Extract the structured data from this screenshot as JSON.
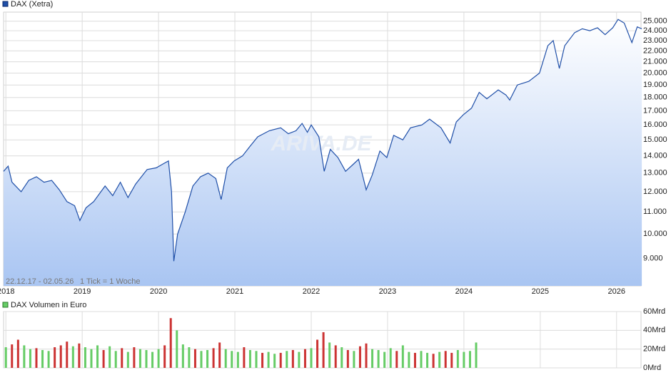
{
  "watermark": "ARIVA.DE",
  "chart_data": [
    {
      "type": "line",
      "annotations": [
        "22.12.17 - 02.05.26",
        "1 Tick = 1 Woche"
      ],
      "series": [
        {
          "name": "DAX (Xetra)",
          "color": "#1f4fa8",
          "x": [
            2017.97,
            2018.03,
            2018.08,
            2018.2,
            2018.3,
            2018.4,
            2018.5,
            2018.6,
            2018.7,
            2018.8,
            2018.9,
            2018.97,
            2019.05,
            2019.15,
            2019.3,
            2019.4,
            2019.5,
            2019.6,
            2019.7,
            2019.85,
            2019.97,
            2020.05,
            2020.13,
            2020.17,
            2020.2,
            2020.25,
            2020.35,
            2020.45,
            2020.55,
            2020.65,
            2020.75,
            2020.82,
            2020.9,
            2020.99,
            2021.1,
            2021.2,
            2021.3,
            2021.45,
            2021.6,
            2021.7,
            2021.8,
            2021.88,
            2021.95,
            2022.0,
            2022.1,
            2022.17,
            2022.25,
            2022.35,
            2022.45,
            2022.55,
            2022.62,
            2022.72,
            2022.8,
            2022.9,
            2022.99,
            2023.08,
            2023.2,
            2023.3,
            2023.45,
            2023.55,
            2023.7,
            2023.82,
            2023.9,
            2023.99,
            2024.1,
            2024.2,
            2024.3,
            2024.45,
            2024.55,
            2024.6,
            2024.7,
            2024.85,
            2024.99,
            2025.1,
            2025.17,
            2025.25,
            2025.32,
            2025.45,
            2025.55,
            2025.65,
            2025.75,
            2025.85,
            2025.95,
            2026.02,
            2026.1,
            2026.2,
            2026.27,
            2026.33
          ],
          "values": [
            13100,
            13400,
            12500,
            12000,
            12600,
            12800,
            12500,
            12600,
            12100,
            11500,
            11300,
            10600,
            11200,
            11500,
            12300,
            11800,
            12500,
            11700,
            12400,
            13200,
            13300,
            13500,
            13700,
            12000,
            8900,
            10000,
            11000,
            12300,
            12800,
            13000,
            12700,
            11600,
            13300,
            13700,
            14000,
            14600,
            15200,
            15600,
            15800,
            15400,
            15600,
            16100,
            15500,
            16000,
            15200,
            13100,
            14400,
            13900,
            13100,
            13500,
            13800,
            12100,
            12900,
            14300,
            13900,
            15300,
            15000,
            15800,
            16000,
            16400,
            15800,
            14800,
            16200,
            16700,
            17200,
            18400,
            17900,
            18600,
            18200,
            17800,
            19000,
            19300,
            20000,
            22500,
            23000,
            20400,
            22500,
            23800,
            24200,
            24000,
            24300,
            23600,
            24300,
            25200,
            24800,
            22800,
            24400,
            24200
          ]
        }
      ],
      "xlim": [
        2017.97,
        2026.32
      ],
      "xticks": [
        2018,
        2019,
        2020,
        2021,
        2022,
        2023,
        2024,
        2025,
        2026
      ],
      "ylim": [
        8000,
        26000
      ],
      "log_scale": true,
      "grid": true,
      "yticks": [
        {
          "value": 9000,
          "label": "9.000"
        },
        {
          "value": 10000,
          "label": "10.000"
        },
        {
          "value": 11000,
          "label": "11.000"
        },
        {
          "value": 12000,
          "label": "12.000"
        },
        {
          "value": 13000,
          "label": "13.000"
        },
        {
          "value": 14000,
          "label": "14.000"
        },
        {
          "value": 15000,
          "label": "15.000"
        },
        {
          "value": 16000,
          "label": "16.000"
        },
        {
          "value": 17000,
          "label": "17.000"
        },
        {
          "value": 18000,
          "label": "18.000"
        },
        {
          "value": 19000,
          "label": "19.000"
        },
        {
          "value": 20000,
          "label": "20.000"
        },
        {
          "value": 21000,
          "label": "21.000"
        },
        {
          "value": 22000,
          "label": "22.000"
        },
        {
          "value": 23000,
          "label": "23.000"
        },
        {
          "value": 24000,
          "label": "24.000"
        },
        {
          "value": 25000,
          "label": "25.000"
        }
      ]
    },
    {
      "type": "bar",
      "series": [
        {
          "name": "DAX Volumen in Euro",
          "color": "#66cc66",
          "x": [
            2018.0,
            2018.08,
            2018.16,
            2018.24,
            2018.32,
            2018.4,
            2018.48,
            2018.56,
            2018.64,
            2018.72,
            2018.8,
            2018.88,
            2018.96,
            2019.04,
            2019.12,
            2019.2,
            2019.28,
            2019.36,
            2019.44,
            2019.52,
            2019.6,
            2019.68,
            2019.76,
            2019.84,
            2019.92,
            2020.0,
            2020.08,
            2020.16,
            2020.24,
            2020.32,
            2020.4,
            2020.48,
            2020.56,
            2020.64,
            2020.72,
            2020.8,
            2020.88,
            2020.96,
            2021.04,
            2021.12,
            2021.2,
            2021.28,
            2021.36,
            2021.44,
            2021.52,
            2021.6,
            2021.68,
            2021.76,
            2021.84,
            2021.92,
            2022.0,
            2022.08,
            2022.16,
            2022.24,
            2022.32,
            2022.4,
            2022.48,
            2022.56,
            2022.64,
            2022.72,
            2022.8,
            2022.88,
            2022.96,
            2023.04,
            2023.12,
            2023.2,
            2023.28,
            2023.36,
            2023.44,
            2023.52,
            2023.6,
            2023.68,
            2023.76,
            2023.84,
            2023.92,
            2024.0,
            2024.08,
            2024.16
          ],
          "values": [
            22,
            25,
            30,
            24,
            20,
            21,
            19,
            18,
            22,
            24,
            28,
            23,
            26,
            22,
            20,
            24,
            19,
            23,
            18,
            21,
            17,
            22,
            20,
            19,
            17,
            20,
            24,
            53,
            40,
            25,
            22,
            20,
            18,
            19,
            21,
            27,
            20,
            18,
            17,
            22,
            19,
            18,
            16,
            17,
            15,
            16,
            18,
            19,
            17,
            20,
            21,
            30,
            38,
            27,
            24,
            22,
            19,
            18,
            23,
            26,
            20,
            19,
            17,
            21,
            18,
            24,
            17,
            16,
            18,
            16,
            15,
            17,
            18,
            16,
            19,
            17,
            18,
            27
          ],
          "bar_colors": [
            "#66cc66",
            "#cc3333",
            "#cc3333",
            "#66cc66",
            "#66cc66",
            "#cc3333",
            "#66cc66",
            "#66cc66",
            "#cc3333",
            "#cc3333",
            "#cc3333",
            "#66cc66",
            "#cc3333",
            "#66cc66",
            "#66cc66",
            "#66cc66",
            "#cc3333",
            "#66cc66",
            "#66cc66",
            "#cc3333",
            "#66cc66",
            "#cc3333",
            "#66cc66",
            "#66cc66",
            "#66cc66",
            "#66cc66",
            "#cc3333",
            "#cc3333",
            "#66cc66",
            "#66cc66",
            "#66cc66",
            "#cc3333",
            "#66cc66",
            "#66cc66",
            "#cc3333",
            "#cc3333",
            "#66cc66",
            "#66cc66",
            "#66cc66",
            "#cc3333",
            "#66cc66",
            "#66cc66",
            "#cc3333",
            "#66cc66",
            "#66cc66",
            "#cc3333",
            "#66cc66",
            "#cc3333",
            "#66cc66",
            "#cc3333",
            "#66cc66",
            "#cc3333",
            "#cc3333",
            "#66cc66",
            "#cc3333",
            "#66cc66",
            "#cc3333",
            "#66cc66",
            "#cc3333",
            "#cc3333",
            "#66cc66",
            "#66cc66",
            "#66cc66",
            "#66cc66",
            "#cc3333",
            "#66cc66",
            "#66cc66",
            "#cc3333",
            "#66cc66",
            "#66cc66",
            "#cc3333",
            "#66cc66",
            "#cc3333",
            "#cc3333",
            "#66cc66",
            "#66cc66",
            "#66cc66",
            "#66cc66"
          ]
        }
      ],
      "xlim": [
        2017.97,
        2026.32
      ],
      "ylim": [
        0,
        60
      ],
      "yticks": [
        {
          "value": 0,
          "label": "0Mrd"
        },
        {
          "value": 20,
          "label": "20Mrd"
        },
        {
          "value": 40,
          "label": "40Mrd"
        },
        {
          "value": 60,
          "label": "60Mrd"
        }
      ]
    }
  ]
}
